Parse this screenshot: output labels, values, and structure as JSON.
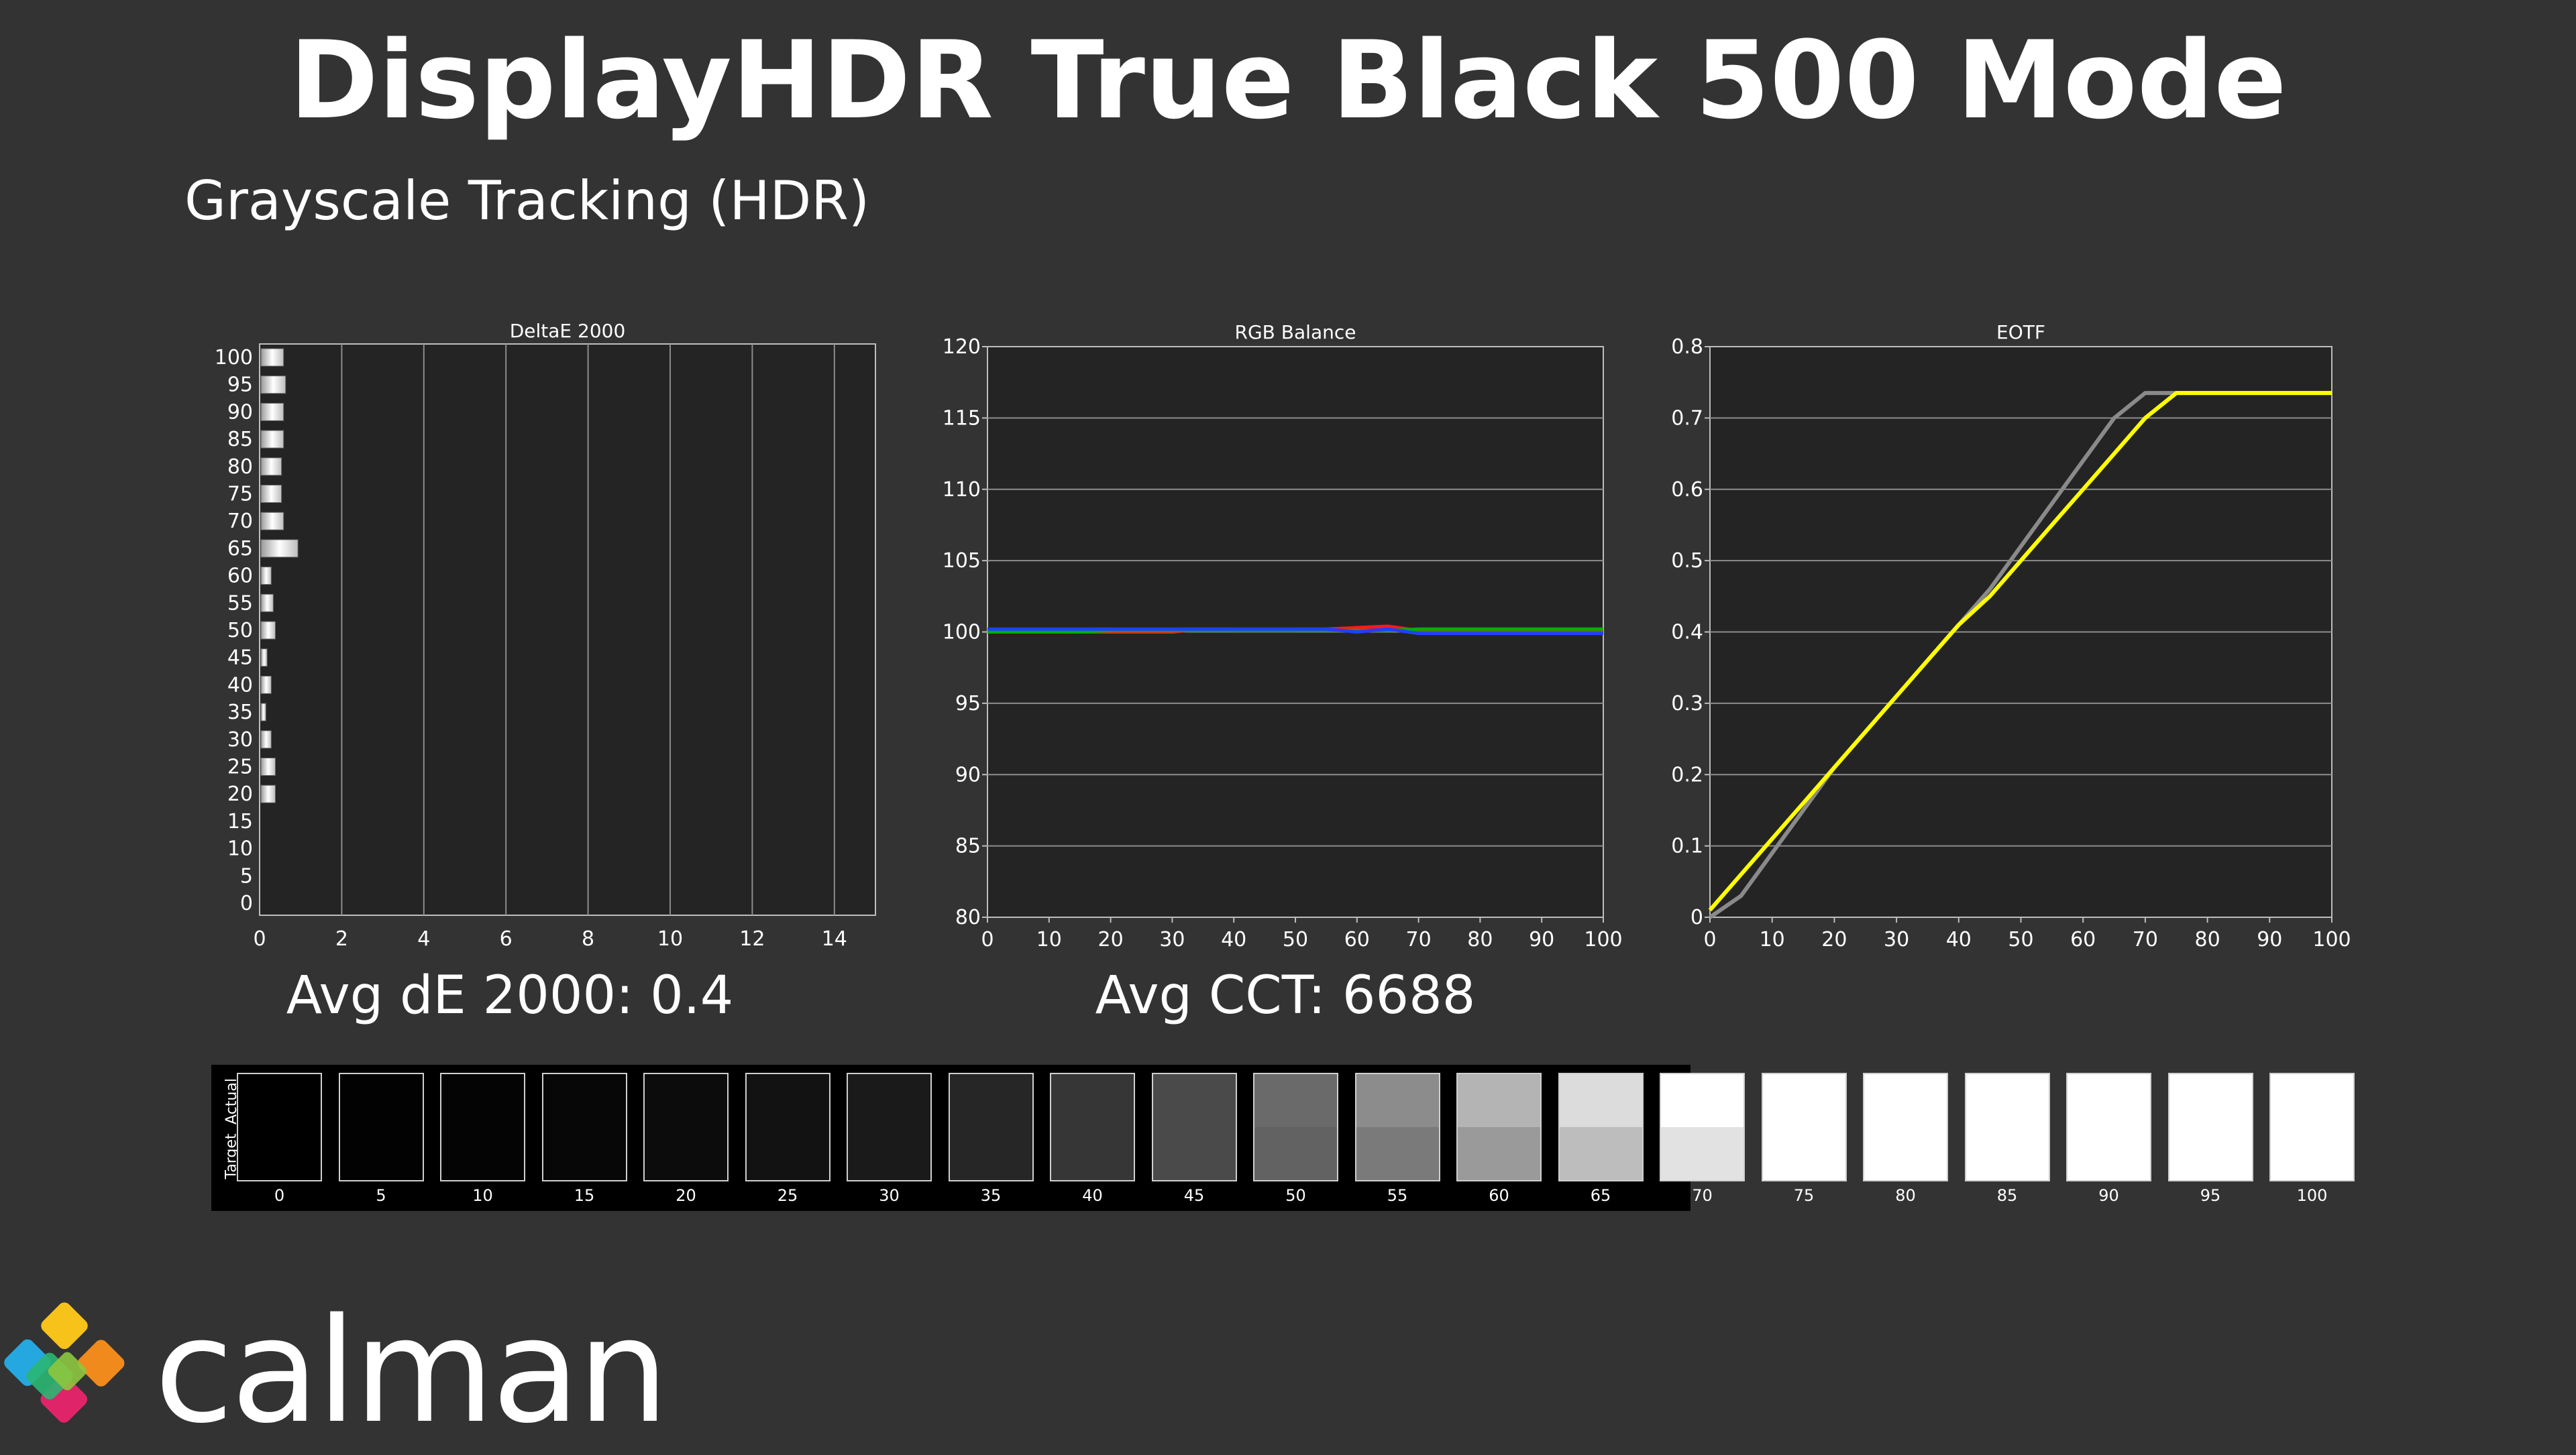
{
  "header": {
    "title": "DisplayHDR True Black 500 Mode",
    "subtitle": "Grayscale Tracking (HDR)"
  },
  "summary": {
    "avg_de": "Avg dE 2000: 0.4",
    "avg_cct": "Avg CCT: 6688"
  },
  "colors": {
    "background": "#333333",
    "plot_bg": "#242424",
    "grid": "#8c8c8c",
    "red": "#ff1a1a",
    "green": "#00b000",
    "blue": "#2040ff",
    "eotf_target": "#8a8a8a",
    "eotf_actual": "#ffff00"
  },
  "chart_data": [
    {
      "type": "bar",
      "orientation": "horizontal",
      "title": "DeltaE 2000",
      "categories": [
        "100",
        "95",
        "90",
        "85",
        "80",
        "75",
        "70",
        "65",
        "60",
        "55",
        "50",
        "45",
        "40",
        "35",
        "30",
        "25",
        "20",
        "15",
        "10",
        "5",
        "0"
      ],
      "values": [
        0.55,
        0.6,
        0.55,
        0.55,
        0.5,
        0.5,
        0.55,
        0.9,
        0.25,
        0.3,
        0.35,
        0.15,
        0.25,
        0.12,
        0.25,
        0.35,
        0.35,
        0,
        0,
        0,
        0
      ],
      "xlim": [
        0,
        15
      ],
      "xticks": [
        "0",
        "2",
        "4",
        "6",
        "8",
        "10",
        "12",
        "14"
      ],
      "grid": "vertical"
    },
    {
      "type": "line",
      "title": "RGB Balance",
      "x": [
        0,
        5,
        10,
        15,
        20,
        25,
        30,
        35,
        40,
        45,
        50,
        55,
        60,
        65,
        70,
        75,
        80,
        85,
        90,
        95,
        100
      ],
      "series": [
        {
          "color": "red",
          "values": [
            100,
            100,
            100,
            100,
            100,
            100,
            100,
            100.2,
            100.1,
            100.1,
            100.1,
            100.2,
            100.3,
            100.4,
            100.1,
            100.1,
            100.1,
            100.1,
            100.1,
            100.1,
            100.1
          ]
        },
        {
          "color": "green",
          "values": [
            100,
            100,
            100,
            100,
            100.1,
            100.1,
            100.1,
            100.1,
            100.1,
            100.1,
            100.1,
            100.1,
            100.1,
            100.1,
            100.2,
            100.2,
            100.2,
            100.2,
            100.2,
            100.2,
            100.2
          ]
        },
        {
          "color": "blue",
          "values": [
            100.2,
            100.2,
            100.2,
            100.2,
            100.2,
            100.2,
            100.2,
            100.2,
            100.2,
            100.2,
            100.2,
            100.2,
            100,
            100.2,
            99.9,
            99.9,
            99.9,
            99.9,
            99.9,
            99.9,
            99.9
          ]
        }
      ],
      "ylim": [
        80,
        120
      ],
      "yticks": [
        "80",
        "85",
        "90",
        "95",
        "100",
        "105",
        "110",
        "115",
        "120"
      ],
      "xticks": [
        "0",
        "10",
        "20",
        "30",
        "40",
        "50",
        "60",
        "70",
        "80",
        "90",
        "100"
      ],
      "grid": "horizontal"
    },
    {
      "type": "line",
      "title": "EOTF",
      "x": [
        0,
        5,
        10,
        15,
        20,
        25,
        30,
        35,
        40,
        45,
        50,
        55,
        60,
        65,
        70,
        75,
        80,
        85,
        90,
        95,
        100
      ],
      "series": [
        {
          "color": "gray",
          "values": [
            0,
            0.03,
            0.09,
            0.15,
            0.21,
            0.26,
            0.31,
            0.36,
            0.41,
            0.46,
            0.52,
            0.58,
            0.64,
            0.7,
            0.735,
            0.735,
            0.735,
            0.735,
            0.735,
            0.735,
            0.735
          ]
        },
        {
          "color": "yellow",
          "values": [
            0.01,
            0.06,
            0.11,
            0.16,
            0.21,
            0.26,
            0.31,
            0.36,
            0.41,
            0.45,
            0.5,
            0.55,
            0.6,
            0.65,
            0.7,
            0.735,
            0.735,
            0.735,
            0.735,
            0.735,
            0.735
          ]
        }
      ],
      "ylim": [
        0,
        0.8
      ],
      "yticks": [
        "0",
        "0.1",
        "0.2",
        "0.3",
        "0.4",
        "0.5",
        "0.6",
        "0.7",
        "0.8"
      ],
      "xticks": [
        "0",
        "10",
        "20",
        "30",
        "40",
        "50",
        "60",
        "70",
        "80",
        "90",
        "100"
      ],
      "grid": "horizontal"
    }
  ],
  "swatches": {
    "row_labels": {
      "actual": "Actual",
      "target": "Target"
    },
    "items": [
      {
        "label": "0",
        "actual": "#000000",
        "target": "#000000"
      },
      {
        "label": "5",
        "actual": "#020202",
        "target": "#020202"
      },
      {
        "label": "10",
        "actual": "#040404",
        "target": "#040404"
      },
      {
        "label": "15",
        "actual": "#070707",
        "target": "#070707"
      },
      {
        "label": "20",
        "actual": "#0c0c0c",
        "target": "#0c0c0c"
      },
      {
        "label": "25",
        "actual": "#121212",
        "target": "#121212"
      },
      {
        "label": "30",
        "actual": "#1a1a1a",
        "target": "#1a1a1a"
      },
      {
        "label": "35",
        "actual": "#262626",
        "target": "#262626"
      },
      {
        "label": "40",
        "actual": "#363636",
        "target": "#363636"
      },
      {
        "label": "45",
        "actual": "#4a4a4a",
        "target": "#4a4a4a"
      },
      {
        "label": "50",
        "actual": "#6a6a6a",
        "target": "#626262"
      },
      {
        "label": "55",
        "actual": "#8c8c8c",
        "target": "#7a7a7a"
      },
      {
        "label": "60",
        "actual": "#b4b4b4",
        "target": "#9a9a9a"
      },
      {
        "label": "65",
        "actual": "#dcdcdc",
        "target": "#bdbdbd"
      },
      {
        "label": "70",
        "actual": "#ffffff",
        "target": "#e2e2e2"
      },
      {
        "label": "75",
        "actual": "#ffffff",
        "target": "#ffffff"
      },
      {
        "label": "80",
        "actual": "#ffffff",
        "target": "#ffffff"
      },
      {
        "label": "85",
        "actual": "#ffffff",
        "target": "#ffffff"
      },
      {
        "label": "90",
        "actual": "#ffffff",
        "target": "#ffffff"
      },
      {
        "label": "95",
        "actual": "#ffffff",
        "target": "#ffffff"
      },
      {
        "label": "100",
        "actual": "#ffffff",
        "target": "#ffffff"
      }
    ]
  },
  "logo": {
    "text": "calman",
    "icon": "calman-diamond-logo-icon"
  }
}
